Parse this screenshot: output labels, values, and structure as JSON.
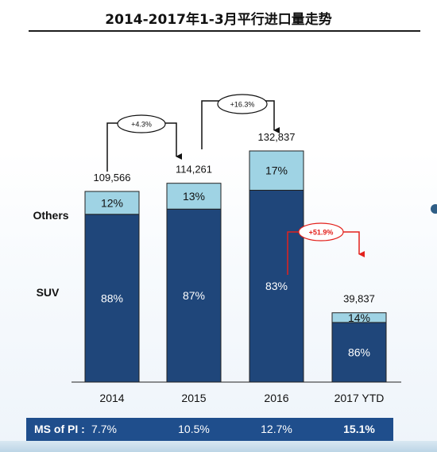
{
  "title": "2014-2017年1-3月平行进口量走势",
  "chart_data": {
    "type": "bar",
    "stacked": true,
    "categories": [
      "2014",
      "2015",
      "2016",
      "2017 YTD"
    ],
    "totals": [
      109566,
      114261,
      132837,
      39837
    ],
    "total_labels": [
      "109,566",
      "114,261",
      "132,837",
      "39,837"
    ],
    "series": [
      {
        "name": "SUV",
        "share_pct": [
          88,
          87,
          83,
          86
        ],
        "share_labels": [
          "88%",
          "87%",
          "83%",
          "86%"
        ],
        "color": "#1f467a"
      },
      {
        "name": "Others",
        "share_pct": [
          12,
          13,
          17,
          14
        ],
        "share_labels": [
          "12%",
          "13%",
          "17%",
          "14%"
        ],
        "color": "#9fd3e4"
      }
    ],
    "ylim": [
      0,
      150000
    ],
    "growth_annotations": [
      {
        "from": "2014",
        "to": "2015",
        "label": "+4.3%",
        "color": "#111111"
      },
      {
        "from": "2015",
        "to": "2016",
        "label": "+16.3%",
        "color": "#111111"
      },
      {
        "from": "2016",
        "to": "2017 YTD",
        "label": "+51.9%",
        "color": "#e3211c"
      }
    ],
    "ms_of_pi": {
      "label": "MS of PI :",
      "values": [
        "7.7%",
        "10.5%",
        "12.7%",
        "15.1%"
      ]
    }
  }
}
